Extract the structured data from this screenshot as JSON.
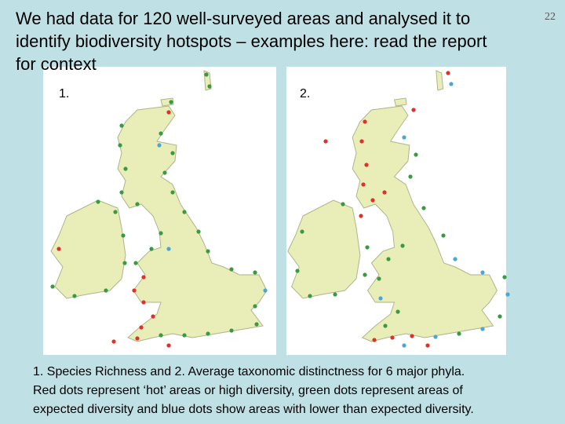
{
  "header": {
    "title_lines": [
      "We had data for 120 well-surveyed areas and analysed it to",
      "identify biodiversity hotspots – examples here: read the report",
      "for context"
    ],
    "page_number": "22"
  },
  "maps": [
    {
      "label": "1."
    },
    {
      "label": "2."
    }
  ],
  "caption_lines": [
    "1. Species Richness and 2. Average taxonomic distinctness for 6 major phyla.",
    "Red dots represent ‘hot’ areas or high diversity, green dots represent areas of",
    "expected diversity and blue dots show areas with lower than expected diversity."
  ]
}
